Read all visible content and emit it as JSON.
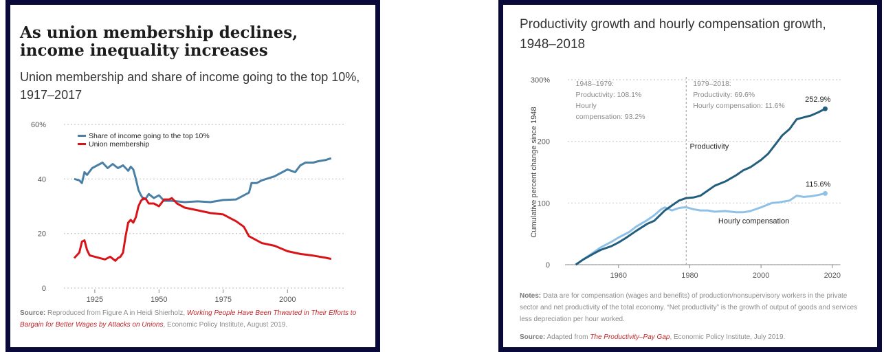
{
  "left": {
    "title": "As union membership declines, income inequality increases",
    "subtitle": "Union membership and share of income going to the top 10%, 1917–2017",
    "source": {
      "label": "Source:",
      "prefix": " Reproduced from Figure A in Heidi Shierholz, ",
      "title": "Working People Have Been Thwarted in Their Efforts to Bargain for Better Wages by Attacks on Unions",
      "suffix": ", Economic Policy Institute, August 2019."
    }
  },
  "right": {
    "title": "Productivity growth and hourly compensation growth, 1948–2018",
    "annotations": {
      "period1": [
        "1948–1979:",
        "Productivity: 108.1%",
        "Hourly",
        "compensation: 93.2%"
      ],
      "period2": [
        "1979–2018:",
        "Productivity: 69.6%",
        "Hourly compensation: 11.6%"
      ],
      "productivity_end": "252.9%",
      "compensation_end": "115.6%"
    },
    "notes": {
      "label": "Notes:",
      "text": " Data are for compensation (wages and benefits) of production/nonsupervisory workers in the private sector and net productivity of the total economy. “Net productivity” is the growth of output of goods and services less depreciation per hour worked."
    },
    "source": {
      "label": "Source:",
      "prefix": " Adapted from ",
      "title": "The Productivity–Pay Gap",
      "suffix": ", Economic Policy Institute, July 2019."
    }
  },
  "chart_data": [
    {
      "type": "line",
      "title": "As union membership declines, income inequality increases",
      "subtitle": "Union membership and share of income going to the top 10%, 1917–2017",
      "xlabel": "",
      "ylabel": "",
      "xlim": [
        1913,
        2020
      ],
      "ylim": [
        0,
        60
      ],
      "x_ticks": [
        1925,
        1950,
        1975,
        2000
      ],
      "y_ticks": [
        0,
        20,
        40,
        60
      ],
      "y_tick_labels": [
        "0",
        "20",
        "40",
        "60%"
      ],
      "grid": "horizontal dotted",
      "legend": "top-left",
      "series": [
        {
          "name": "Share of income going to the top 10%",
          "color": "#4a7fa6",
          "x": [
            1917,
            1919,
            1920,
            1921,
            1922,
            1924,
            1926,
            1928,
            1930,
            1932,
            1934,
            1936,
            1938,
            1939,
            1940,
            1941,
            1942,
            1943,
            1944,
            1945,
            1946,
            1948,
            1950,
            1952,
            1955,
            1960,
            1965,
            1970,
            1975,
            1980,
            1985,
            1986,
            1988,
            1990,
            1995,
            2000,
            2003,
            2005,
            2007,
            2010,
            2012,
            2015,
            2017
          ],
          "values": [
            40,
            39.5,
            38.5,
            42.5,
            41.5,
            44,
            45,
            46,
            44,
            45.5,
            44,
            45,
            43,
            44.5,
            43.5,
            40,
            36,
            34,
            32.5,
            33,
            34.5,
            33,
            34,
            32,
            32,
            31.5,
            31.8,
            31.5,
            32.3,
            32.5,
            35,
            38.5,
            38.5,
            39.5,
            41,
            43.5,
            42.5,
            45,
            46,
            46,
            46.5,
            47,
            47.6
          ]
        },
        {
          "name": "Union membership",
          "color": "#d81418",
          "x": [
            1917,
            1918,
            1919,
            1920,
            1921,
            1922,
            1923,
            1925,
            1927,
            1929,
            1931,
            1933,
            1934,
            1935,
            1936,
            1937,
            1938,
            1939,
            1940,
            1941,
            1942,
            1943,
            1944,
            1945,
            1946,
            1948,
            1950,
            1952,
            1954,
            1955,
            1957,
            1960,
            1965,
            1970,
            1975,
            1978,
            1980,
            1983,
            1985,
            1990,
            1995,
            2000,
            2005,
            2010,
            2015,
            2017
          ],
          "values": [
            11,
            12,
            13,
            17,
            17.5,
            14,
            12,
            11.5,
            11,
            10.5,
            11.5,
            10,
            11,
            11.5,
            13,
            19,
            24,
            25,
            24,
            26,
            30,
            32,
            33,
            32.5,
            31,
            31,
            30,
            32.5,
            32.5,
            33,
            31,
            29.5,
            28.5,
            27.5,
            27,
            25.5,
            24.5,
            22.5,
            19,
            16.5,
            15.5,
            13.5,
            12.5,
            11.9,
            11.1,
            10.7
          ]
        }
      ]
    },
    {
      "type": "line",
      "title": "Productivity growth and hourly compensation growth, 1948–2018",
      "ylabel": "Cumulative percent change since 1948",
      "xlabel": "",
      "xlim": [
        1945,
        2021
      ],
      "ylim": [
        0,
        300
      ],
      "x_ticks": [
        1960,
        1980,
        2000,
        2020
      ],
      "y_ticks": [
        0,
        100,
        200,
        300
      ],
      "y_tick_labels": [
        "0",
        "100",
        "200",
        "300%"
      ],
      "grid": "horizontal dotted",
      "reference_line": 1979,
      "series": [
        {
          "name": "Productivity",
          "color": "#235e7f",
          "x": [
            1948,
            1950,
            1953,
            1955,
            1958,
            1960,
            1962,
            1965,
            1968,
            1970,
            1973,
            1975,
            1977,
            1979,
            1981,
            1983,
            1985,
            1987,
            1990,
            1993,
            1995,
            1997,
            2000,
            2002,
            2004,
            2006,
            2008,
            2010,
            2012,
            2014,
            2016,
            2018
          ],
          "values": [
            0,
            8,
            18,
            24,
            30,
            36,
            43,
            55,
            66,
            71,
            88,
            96,
            104,
            108.1,
            109,
            112,
            120,
            128,
            135,
            145,
            153,
            158,
            170,
            180,
            195,
            210,
            220,
            236,
            239,
            242,
            247,
            252.9
          ]
        },
        {
          "name": "Hourly compensation",
          "color": "#8fc1e6",
          "x": [
            1948,
            1950,
            1953,
            1955,
            1958,
            1960,
            1963,
            1965,
            1968,
            1970,
            1972,
            1973,
            1975,
            1977,
            1979,
            1981,
            1983,
            1985,
            1987,
            1990,
            1993,
            1995,
            1997,
            2000,
            2003,
            2005,
            2008,
            2010,
            2012,
            2014,
            2016,
            2018
          ],
          "values": [
            0,
            8,
            20,
            28,
            37,
            44,
            53,
            62,
            72,
            80,
            90,
            93,
            88,
            92,
            93.2,
            90,
            88,
            88,
            86,
            87,
            85,
            85,
            87,
            93,
            100,
            101,
            104,
            112,
            110,
            111,
            113,
            115.6
          ]
        }
      ]
    }
  ]
}
